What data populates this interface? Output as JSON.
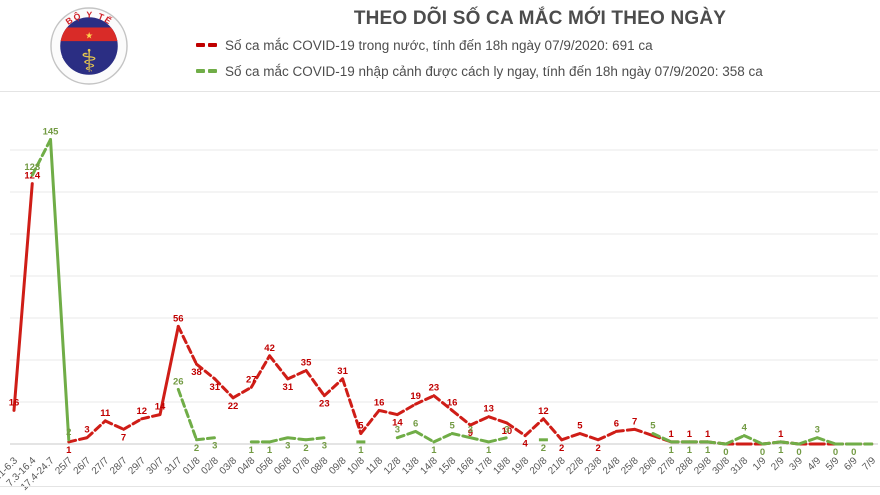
{
  "header": {
    "title": "THEO DÕI SỐ CA MẮC MỚI THEO NGÀY",
    "logo": {
      "top_text": "BỘ Y TẾ",
      "bottom_text": "MINISTRY OF HEALTH"
    },
    "legend": [
      {
        "label": "Số ca mắc COVID-19 trong nước, tính đến 18h ngày 07/9/2020: 691 ca",
        "color": "#c00000"
      },
      {
        "label": "Số ca mắc COVID-19 nhập cảnh được cách ly ngay, tính đến 18h ngày 07/9/2020: 358 ca",
        "color": "#70ad47"
      }
    ]
  },
  "chart_data": {
    "type": "line",
    "title": "THEO DÕI SỐ CA MẮC MỚI THEO NGÀY",
    "categories": [
      "23.1-6.3",
      "7.3-16.4",
      "17.4-24.7",
      "25/7",
      "26/7",
      "27/7",
      "28/7",
      "29/7",
      "30/7",
      "31/7",
      "01/8",
      "02/8",
      "03/8",
      "04/8",
      "05/8",
      "06/8",
      "07/8",
      "08/8",
      "09/8",
      "10/8",
      "11/8",
      "12/8",
      "13/8",
      "14/8",
      "15/8",
      "16/8",
      "17/8",
      "18/8",
      "19/8",
      "20/8",
      "21/8",
      "22/8",
      "23/8",
      "24/8",
      "25/8",
      "26/8",
      "27/8",
      "28/8",
      "29/8",
      "30/8",
      "31/8",
      "1/9",
      "2/9",
      "3/9",
      "4/9",
      "5/9",
      "6/9",
      "7/9"
    ],
    "ylim": [
      0,
      145
    ],
    "grid": {
      "step": 20,
      "max": 140,
      "visible": true
    },
    "legend_position": "top",
    "colors": {
      "grid": "#e8e8e8",
      "axis": "#c9c9c9",
      "axis_text": "#595959"
    },
    "series": [
      {
        "name": "domestic-cases",
        "display_name": "Số ca mắc COVID-19 trong nước",
        "color": "#cf1d17",
        "label_color": "#c00000",
        "dashed": true,
        "values": [
          16,
          124,
          null,
          1,
          3,
          11,
          7,
          12,
          14,
          56,
          38,
          31,
          22,
          27,
          42,
          31,
          35,
          23,
          31,
          5,
          16,
          14,
          19,
          23,
          16,
          9,
          13,
          10,
          4,
          12,
          2,
          5,
          2,
          6,
          7,
          4,
          1,
          1,
          1,
          0,
          0,
          0,
          1,
          0,
          0,
          0,
          0,
          0
        ],
        "labels": [
          "16",
          "124",
          "",
          "1",
          "3",
          "11",
          "7",
          "12",
          "14",
          "56",
          "38",
          "31",
          "22",
          "27",
          "42",
          "31",
          "35",
          "23",
          "31",
          "5",
          "16",
          "14",
          "19",
          "23",
          "16",
          "9",
          "13",
          "10",
          "4",
          "12",
          "2",
          "5",
          "2",
          "6",
          "7",
          "",
          "1",
          "1",
          "1",
          "",
          "",
          "",
          "1",
          "",
          "",
          "",
          "",
          ""
        ],
        "label_pos": [
          "a",
          "a",
          "",
          "b",
          "a",
          "a",
          "b",
          "a",
          "a",
          "a",
          "b",
          "b",
          "b",
          "a",
          "a",
          "b",
          "a",
          "b",
          "a",
          "a",
          "a",
          "b",
          "a",
          "a",
          "a",
          "b",
          "a",
          "b",
          "b",
          "a",
          "b",
          "a",
          "b",
          "a",
          "a",
          "",
          "a",
          "a",
          "a",
          "",
          "",
          "",
          "a",
          "",
          "",
          "",
          "",
          ""
        ]
      },
      {
        "name": "imported-cases",
        "display_name": "Số ca mắc COVID-19 nhập cảnh được cách ly ngay",
        "color": "#70ad47",
        "label_color": "#739b44",
        "dashed": true,
        "values": [
          null,
          128,
          145,
          2,
          null,
          null,
          null,
          null,
          null,
          26,
          2,
          3,
          null,
          1,
          1,
          3,
          2,
          3,
          null,
          1,
          null,
          3,
          6,
          1,
          5,
          3,
          1,
          3,
          null,
          2,
          null,
          null,
          null,
          null,
          null,
          5,
          1,
          1,
          1,
          0,
          4,
          0,
          1,
          0,
          3,
          0,
          0,
          0
        ],
        "labels": [
          "",
          "128",
          "145",
          "2",
          "",
          "",
          "",
          "",
          "",
          "26",
          "2",
          "3",
          "",
          "1",
          "1",
          "3",
          "2",
          "3",
          "",
          "1",
          "",
          "3",
          "6",
          "1",
          "5",
          "3",
          "1",
          "3",
          "",
          "2",
          "",
          "",
          "",
          "",
          "",
          "5",
          "1",
          "1",
          "1",
          "0",
          "4",
          "0",
          "1",
          "0",
          "3",
          "0",
          "0",
          ""
        ],
        "label_pos": [
          "",
          "a",
          "a",
          "a",
          "",
          "",
          "",
          "",
          "",
          "a",
          "b",
          "b",
          "",
          "b",
          "b",
          "b",
          "b",
          "b",
          "",
          "b",
          "",
          "a",
          "a",
          "b",
          "a",
          "a",
          "b",
          "a",
          "",
          "b",
          "",
          "",
          "",
          "",
          "",
          "a",
          "b",
          "b",
          "b",
          "b",
          "a",
          "b",
          "b",
          "b",
          "a",
          "b",
          "b",
          ""
        ]
      }
    ]
  }
}
